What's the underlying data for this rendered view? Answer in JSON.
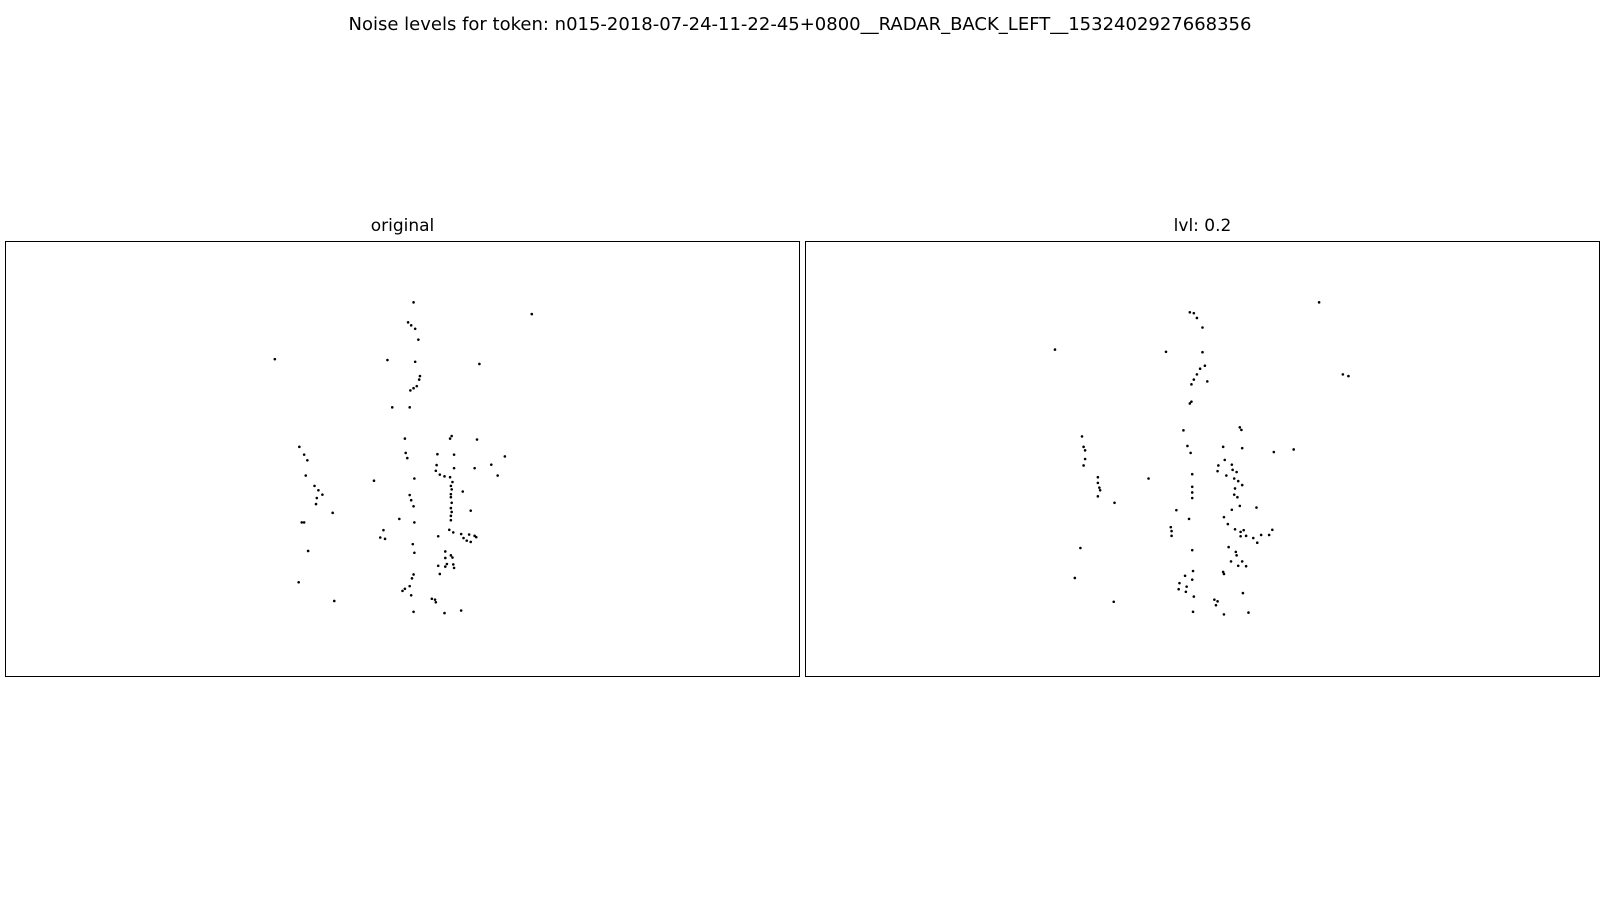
{
  "figure": {
    "suptitle": "Noise levels for token: n015-2018-07-24-11-22-45+0800__RADAR_BACK_LEFT__1532402927668356"
  },
  "chart_data": [
    {
      "type": "scatter",
      "title": "original",
      "xlabel": "",
      "ylabel": "",
      "axes_visible": false,
      "grid": false,
      "xlim": [
        0,
        1
      ],
      "ylim": [
        0,
        1
      ],
      "marker_color": "#000000",
      "points": [
        [
          0.514,
          0.861
        ],
        [
          0.507,
          0.815
        ],
        [
          0.511,
          0.808
        ],
        [
          0.516,
          0.8
        ],
        [
          0.52,
          0.775
        ],
        [
          0.663,
          0.834
        ],
        [
          0.339,
          0.73
        ],
        [
          0.481,
          0.728
        ],
        [
          0.516,
          0.724
        ],
        [
          0.597,
          0.719
        ],
        [
          0.522,
          0.691
        ],
        [
          0.521,
          0.683
        ],
        [
          0.518,
          0.668
        ],
        [
          0.514,
          0.663
        ],
        [
          0.51,
          0.658
        ],
        [
          0.509,
          0.619
        ],
        [
          0.487,
          0.619
        ],
        [
          0.562,
          0.553
        ],
        [
          0.56,
          0.547
        ],
        [
          0.594,
          0.545
        ],
        [
          0.503,
          0.547
        ],
        [
          0.504,
          0.514
        ],
        [
          0.506,
          0.502
        ],
        [
          0.544,
          0.511
        ],
        [
          0.565,
          0.51
        ],
        [
          0.629,
          0.506
        ],
        [
          0.37,
          0.528
        ],
        [
          0.376,
          0.51
        ],
        [
          0.38,
          0.497
        ],
        [
          0.612,
          0.487
        ],
        [
          0.591,
          0.479
        ],
        [
          0.543,
          0.486
        ],
        [
          0.565,
          0.479
        ],
        [
          0.542,
          0.473
        ],
        [
          0.547,
          0.464
        ],
        [
          0.553,
          0.46
        ],
        [
          0.56,
          0.458
        ],
        [
          0.62,
          0.462
        ],
        [
          0.515,
          0.455
        ],
        [
          0.464,
          0.45
        ],
        [
          0.378,
          0.462
        ],
        [
          0.389,
          0.438
        ],
        [
          0.394,
          0.428
        ],
        [
          0.399,
          0.418
        ],
        [
          0.563,
          0.447
        ],
        [
          0.561,
          0.438
        ],
        [
          0.562,
          0.43
        ],
        [
          0.576,
          0.425
        ],
        [
          0.561,
          0.419
        ],
        [
          0.509,
          0.417
        ],
        [
          0.511,
          0.405
        ],
        [
          0.561,
          0.412
        ],
        [
          0.392,
          0.41
        ],
        [
          0.562,
          0.399
        ],
        [
          0.391,
          0.396
        ],
        [
          0.514,
          0.391
        ],
        [
          0.412,
          0.376
        ],
        [
          0.586,
          0.381
        ],
        [
          0.561,
          0.387
        ],
        [
          0.562,
          0.378
        ],
        [
          0.496,
          0.362
        ],
        [
          0.376,
          0.354
        ],
        [
          0.373,
          0.354
        ],
        [
          0.561,
          0.369
        ],
        [
          0.561,
          0.359
        ],
        [
          0.515,
          0.354
        ],
        [
          0.559,
          0.337
        ],
        [
          0.564,
          0.331
        ],
        [
          0.574,
          0.327
        ],
        [
          0.577,
          0.318
        ],
        [
          0.584,
          0.326
        ],
        [
          0.591,
          0.323
        ],
        [
          0.581,
          0.312
        ],
        [
          0.586,
          0.309
        ],
        [
          0.593,
          0.32
        ],
        [
          0.476,
          0.336
        ],
        [
          0.472,
          0.319
        ],
        [
          0.478,
          0.316
        ],
        [
          0.545,
          0.322
        ],
        [
          0.513,
          0.304
        ],
        [
          0.515,
          0.284
        ],
        [
          0.381,
          0.288
        ],
        [
          0.554,
          0.287
        ],
        [
          0.561,
          0.278
        ],
        [
          0.554,
          0.272
        ],
        [
          0.563,
          0.273
        ],
        [
          0.556,
          0.258
        ],
        [
          0.545,
          0.254
        ],
        [
          0.554,
          0.252
        ],
        [
          0.565,
          0.249
        ],
        [
          0.564,
          0.257
        ],
        [
          0.547,
          0.235
        ],
        [
          0.514,
          0.234
        ],
        [
          0.512,
          0.225
        ],
        [
          0.509,
          0.207
        ],
        [
          0.503,
          0.201
        ],
        [
          0.5,
          0.196
        ],
        [
          0.369,
          0.216
        ],
        [
          0.511,
          0.186
        ],
        [
          0.414,
          0.173
        ],
        [
          0.537,
          0.178
        ],
        [
          0.541,
          0.176
        ],
        [
          0.542,
          0.17
        ],
        [
          0.574,
          0.151
        ],
        [
          0.553,
          0.145
        ],
        [
          0.514,
          0.148
        ]
      ]
    },
    {
      "type": "scatter",
      "title": "lvl: 0.2",
      "xlabel": "",
      "ylabel": "",
      "axes_visible": false,
      "grid": false,
      "xlim": [
        0,
        1
      ],
      "ylim": [
        0,
        1
      ],
      "marker_color": "#000000",
      "points": [
        [
          0.647,
          0.861
        ],
        [
          0.484,
          0.838
        ],
        [
          0.489,
          0.836
        ],
        [
          0.493,
          0.825
        ],
        [
          0.5,
          0.803
        ],
        [
          0.314,
          0.752
        ],
        [
          0.454,
          0.747
        ],
        [
          0.5,
          0.746
        ],
        [
          0.503,
          0.715
        ],
        [
          0.497,
          0.708
        ],
        [
          0.493,
          0.695
        ],
        [
          0.489,
          0.683
        ],
        [
          0.486,
          0.672
        ],
        [
          0.506,
          0.679
        ],
        [
          0.677,
          0.695
        ],
        [
          0.684,
          0.691
        ],
        [
          0.486,
          0.632
        ],
        [
          0.484,
          0.628
        ],
        [
          0.547,
          0.573
        ],
        [
          0.549,
          0.567
        ],
        [
          0.476,
          0.566
        ],
        [
          0.348,
          0.552
        ],
        [
          0.35,
          0.528
        ],
        [
          0.352,
          0.52
        ],
        [
          0.352,
          0.5
        ],
        [
          0.35,
          0.485
        ],
        [
          0.481,
          0.53
        ],
        [
          0.485,
          0.514
        ],
        [
          0.526,
          0.528
        ],
        [
          0.55,
          0.525
        ],
        [
          0.59,
          0.516
        ],
        [
          0.615,
          0.522
        ],
        [
          0.432,
          0.455
        ],
        [
          0.368,
          0.458
        ],
        [
          0.368,
          0.445
        ],
        [
          0.37,
          0.434
        ],
        [
          0.371,
          0.428
        ],
        [
          0.368,
          0.414
        ],
        [
          0.389,
          0.399
        ],
        [
          0.487,
          0.465
        ],
        [
          0.487,
          0.436
        ],
        [
          0.487,
          0.423
        ],
        [
          0.487,
          0.41
        ],
        [
          0.52,
          0.485
        ],
        [
          0.519,
          0.472
        ],
        [
          0.53,
          0.462
        ],
        [
          0.528,
          0.498
        ],
        [
          0.537,
          0.487
        ],
        [
          0.538,
          0.475
        ],
        [
          0.543,
          0.47
        ],
        [
          0.54,
          0.455
        ],
        [
          0.545,
          0.449
        ],
        [
          0.541,
          0.432
        ],
        [
          0.54,
          0.418
        ],
        [
          0.55,
          0.44
        ],
        [
          0.544,
          0.412
        ],
        [
          0.547,
          0.392
        ],
        [
          0.537,
          0.383
        ],
        [
          0.527,
          0.366
        ],
        [
          0.483,
          0.362
        ],
        [
          0.467,
          0.382
        ],
        [
          0.568,
          0.388
        ],
        [
          0.46,
          0.343
        ],
        [
          0.461,
          0.334
        ],
        [
          0.461,
          0.323
        ],
        [
          0.532,
          0.35
        ],
        [
          0.541,
          0.338
        ],
        [
          0.548,
          0.332
        ],
        [
          0.552,
          0.336
        ],
        [
          0.548,
          0.322
        ],
        [
          0.555,
          0.323
        ],
        [
          0.564,
          0.318
        ],
        [
          0.569,
          0.307
        ],
        [
          0.574,
          0.325
        ],
        [
          0.584,
          0.325
        ],
        [
          0.588,
          0.337
        ],
        [
          0.346,
          0.295
        ],
        [
          0.487,
          0.29
        ],
        [
          0.533,
          0.297
        ],
        [
          0.542,
          0.286
        ],
        [
          0.543,
          0.278
        ],
        [
          0.536,
          0.264
        ],
        [
          0.55,
          0.264
        ],
        [
          0.545,
          0.254
        ],
        [
          0.555,
          0.253
        ],
        [
          0.526,
          0.24
        ],
        [
          0.527,
          0.235
        ],
        [
          0.488,
          0.242
        ],
        [
          0.478,
          0.231
        ],
        [
          0.487,
          0.222
        ],
        [
          0.471,
          0.214
        ],
        [
          0.48,
          0.206
        ],
        [
          0.47,
          0.2
        ],
        [
          0.479,
          0.194
        ],
        [
          0.551,
          0.191
        ],
        [
          0.339,
          0.226
        ],
        [
          0.489,
          0.183
        ],
        [
          0.515,
          0.176
        ],
        [
          0.519,
          0.172
        ],
        [
          0.517,
          0.163
        ],
        [
          0.388,
          0.171
        ],
        [
          0.558,
          0.146
        ],
        [
          0.488,
          0.148
        ],
        [
          0.527,
          0.142
        ]
      ]
    }
  ]
}
